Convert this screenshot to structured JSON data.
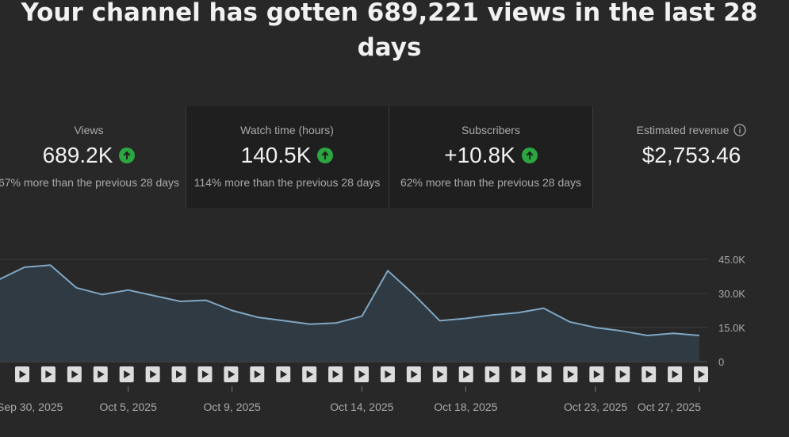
{
  "headline": "Your channel has gotten 689,221 views in the last 28 days",
  "cards": [
    {
      "label": "Views",
      "value": "689.2K",
      "trend": "up",
      "sub": "67% more than the previous 28 days",
      "selected": false
    },
    {
      "label": "Watch time (hours)",
      "value": "140.5K",
      "trend": "up",
      "sub": "114% more than the previous 28 days",
      "selected": true
    },
    {
      "label": "Subscribers",
      "value": "+10.8K",
      "trend": "up",
      "sub": "62% more than the previous 28 days",
      "selected": true
    },
    {
      "label": "Estimated revenue",
      "value": "$2,753.46",
      "trend": "",
      "sub": "",
      "info_icon": "info-icon",
      "selected": false
    }
  ],
  "colors": {
    "background": "#282828",
    "selected_card": "#1f1f1f",
    "trend_up": "#2ba640",
    "line": "#7fa7c4",
    "area": "#2f3a43",
    "gridline": "#3d3d3d"
  },
  "chart_data": {
    "type": "area",
    "x": [
      "Sep 30, 2025",
      "Oct 1, 2025",
      "Oct 2, 2025",
      "Oct 3, 2025",
      "Oct 4, 2025",
      "Oct 5, 2025",
      "Oct 6, 2025",
      "Oct 7, 2025",
      "Oct 8, 2025",
      "Oct 9, 2025",
      "Oct 10, 2025",
      "Oct 11, 2025",
      "Oct 12, 2025",
      "Oct 13, 2025",
      "Oct 14, 2025",
      "Oct 15, 2025",
      "Oct 16, 2025",
      "Oct 17, 2025",
      "Oct 18, 2025",
      "Oct 19, 2025",
      "Oct 20, 2025",
      "Oct 21, 2025",
      "Oct 22, 2025",
      "Oct 23, 2025",
      "Oct 24, 2025",
      "Oct 25, 2025",
      "Oct 26, 2025",
      "Oct 27, 2025"
    ],
    "series": [
      {
        "values": [
          36000,
          41500,
          42500,
          32500,
          29500,
          31500,
          29000,
          26500,
          27000,
          22500,
          19500,
          18000,
          16500,
          17000,
          20000,
          40000,
          29500,
          18000,
          19000,
          20500,
          21500,
          23500,
          17500,
          15000,
          13500,
          11500,
          12500,
          11500
        ]
      }
    ],
    "x_tick_labels": [
      "Sep 30, 2025",
      "Oct 5, 2025",
      "Oct 9, 2025",
      "Oct 14, 2025",
      "Oct 18, 2025",
      "Oct 23, 2025",
      "Oct 27, 2025"
    ],
    "y_tick_labels": [
      "0",
      "15.0K",
      "30.0K",
      "45.0K"
    ],
    "y_ticks": [
      0,
      15000,
      30000,
      45000
    ],
    "ylim": [
      0,
      45000
    ],
    "grid": true,
    "video_markers": 27,
    "marker_icon": "play-icon"
  }
}
